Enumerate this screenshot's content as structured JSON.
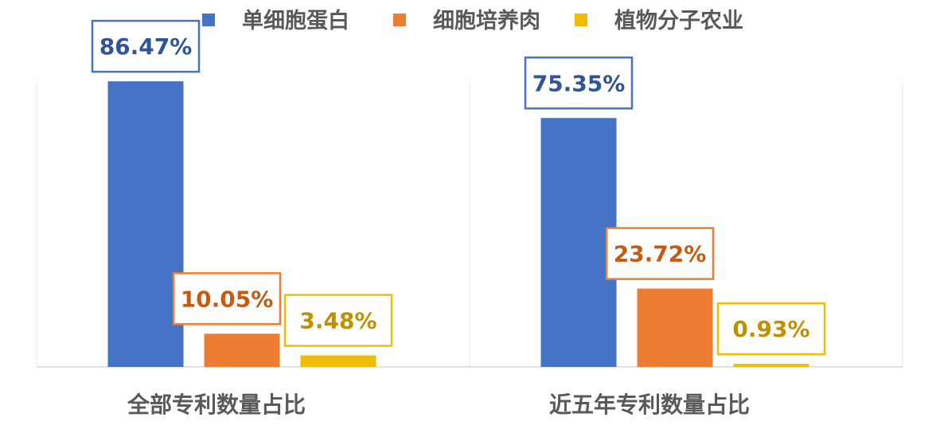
{
  "chart_data": {
    "type": "bar",
    "categories": [
      "全部专利数量占比",
      "近五年专利数量占比"
    ],
    "series": [
      {
        "name": "单细胞蛋白",
        "color": "#4472C4",
        "label_color": "#2F5597",
        "values": [
          86.47,
          75.35
        ],
        "labels": [
          "86.47%",
          "75.35%"
        ]
      },
      {
        "name": "细胞培养肉",
        "color": "#ED7D31",
        "label_color": "#C55A11",
        "values": [
          10.05,
          23.72
        ],
        "labels": [
          "10.05%",
          "23.72%"
        ]
      },
      {
        "name": "植物分子农业",
        "color": "#F2BC00",
        "label_color": "#BF9000",
        "values": [
          3.48,
          0.93
        ],
        "labels": [
          "3.48%",
          "0.93%"
        ]
      }
    ],
    "ylim": [
      0,
      100
    ],
    "grid": false,
    "legend_position": "top-center"
  }
}
